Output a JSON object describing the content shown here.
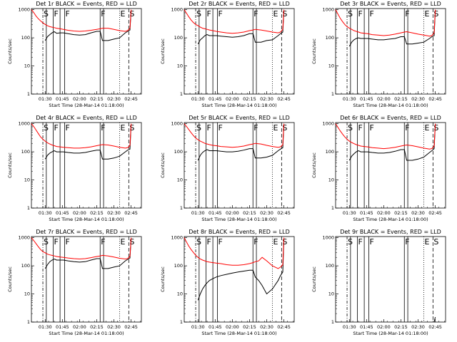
{
  "figure": {
    "axis_common": {
      "xtick_labels": [
        "01:30",
        "01:45",
        "02:00",
        "02:15",
        "02:30",
        "02:45"
      ],
      "xtick_minutes": [
        90,
        105,
        120,
        135,
        150,
        165
      ],
      "xlim_minutes": [
        78,
        174
      ],
      "ylabel": "Counts/sec",
      "xlabel": "Start Time (28-Mar-14 01:18:00)",
      "ytick_values": [
        1,
        10,
        100,
        1000
      ],
      "ytick_labels": [
        "1",
        "10",
        "100",
        "1000"
      ],
      "ylim": [
        1,
        1100
      ],
      "yscale": "log",
      "colors": {
        "events": "#000000",
        "lld": "#ff0000"
      }
    },
    "markers": [
      {
        "label": "S",
        "time": 88,
        "style": "dash-dot"
      },
      {
        "label": "",
        "time": 91,
        "style": "solid"
      },
      {
        "label": "F",
        "time": 97,
        "style": "solid"
      },
      {
        "label": "",
        "time": 103,
        "style": "solid"
      },
      {
        "label": "F",
        "time": 107,
        "style": "solid"
      },
      {
        "label": "F",
        "time": 138,
        "style": "solid"
      },
      {
        "label": "",
        "time": 141,
        "style": "solid"
      },
      {
        "label": "E",
        "time": 155,
        "style": "dotted"
      },
      {
        "label": "S",
        "time": 163,
        "style": "dashed"
      }
    ]
  },
  "chart_data": [
    {
      "type": "line",
      "title": "Det 1r BLACK = Events, RED = LLD",
      "x": [
        78,
        80,
        82,
        84,
        86,
        88,
        90,
        92,
        94,
        96,
        98,
        100,
        103,
        106,
        110,
        115,
        120,
        125,
        130,
        135,
        138,
        140,
        145,
        150,
        155,
        160,
        162,
        164,
        165
      ],
      "series": [
        {
          "name": "Events",
          "values": [
            null,
            null,
            null,
            null,
            null,
            null,
            80,
            110,
            130,
            150,
            165,
            145,
            150,
            150,
            140,
            130,
            125,
            130,
            150,
            170,
            170,
            80,
            80,
            90,
            100,
            150,
            170,
            190,
            900
          ]
        },
        {
          "name": "LLD",
          "values": [
            1000,
            800,
            600,
            480,
            400,
            340,
            300,
            270,
            250,
            240,
            230,
            220,
            210,
            200,
            185,
            175,
            170,
            175,
            185,
            200,
            210,
            220,
            220,
            200,
            180,
            170,
            180,
            220,
            1000
          ]
        }
      ]
    },
    {
      "type": "line",
      "title": "Det 2r BLACK = Events, RED = LLD",
      "x": [
        78,
        80,
        82,
        84,
        86,
        88,
        90,
        92,
        94,
        96,
        98,
        100,
        103,
        106,
        110,
        115,
        120,
        125,
        130,
        135,
        138,
        140,
        145,
        150,
        155,
        160,
        162,
        164,
        165
      ],
      "series": [
        {
          "name": "Events",
          "values": [
            null,
            null,
            null,
            null,
            null,
            null,
            60,
            85,
            100,
            120,
            130,
            120,
            120,
            120,
            115,
            110,
            105,
            110,
            120,
            140,
            140,
            70,
            70,
            80,
            85,
            120,
            140,
            160,
            900
          ]
        },
        {
          "name": "LLD",
          "values": [
            1000,
            750,
            560,
            430,
            350,
            300,
            270,
            240,
            220,
            210,
            200,
            190,
            180,
            170,
            160,
            150,
            145,
            150,
            160,
            180,
            190,
            200,
            190,
            175,
            160,
            150,
            160,
            200,
            1000
          ]
        }
      ]
    },
    {
      "type": "line",
      "title": "Det 3r BLACK = Events, RED = LLD",
      "x": [
        78,
        80,
        82,
        84,
        86,
        88,
        90,
        92,
        94,
        96,
        98,
        100,
        103,
        106,
        110,
        115,
        120,
        125,
        130,
        135,
        138,
        140,
        145,
        150,
        155,
        160,
        162,
        164,
        165
      ],
      "series": [
        {
          "name": "Events",
          "values": [
            null,
            null,
            null,
            null,
            null,
            null,
            50,
            70,
            85,
            95,
            100,
            95,
            95,
            95,
            90,
            85,
            85,
            90,
            95,
            110,
            110,
            60,
            60,
            65,
            70,
            95,
            110,
            120,
            900
          ]
        },
        {
          "name": "LLD",
          "values": [
            1000,
            700,
            500,
            380,
            300,
            250,
            220,
            200,
            180,
            170,
            160,
            150,
            145,
            140,
            130,
            125,
            120,
            125,
            135,
            150,
            160,
            165,
            150,
            135,
            125,
            115,
            120,
            150,
            1000
          ]
        }
      ]
    },
    {
      "type": "line",
      "title": "Det 4r BLACK = Events, RED = LLD",
      "x": [
        78,
        80,
        82,
        84,
        86,
        88,
        90,
        92,
        94,
        96,
        98,
        100,
        103,
        106,
        110,
        115,
        120,
        125,
        130,
        135,
        138,
        140,
        145,
        150,
        155,
        160,
        162,
        164,
        165
      ],
      "series": [
        {
          "name": "Events",
          "values": [
            null,
            null,
            null,
            null,
            null,
            null,
            55,
            75,
            90,
            100,
            110,
            100,
            100,
            100,
            95,
            90,
            90,
            95,
            105,
            115,
            115,
            55,
            55,
            60,
            70,
            100,
            115,
            125,
            900
          ]
        },
        {
          "name": "LLD",
          "values": [
            1000,
            800,
            600,
            450,
            340,
            280,
            240,
            210,
            190,
            175,
            165,
            155,
            150,
            145,
            140,
            135,
            135,
            140,
            150,
            165,
            175,
            180,
            175,
            160,
            145,
            135,
            140,
            170,
            1000
          ]
        }
      ]
    },
    {
      "type": "line",
      "title": "Det 5r BLACK = Events, RED = LLD",
      "x": [
        78,
        80,
        82,
        84,
        86,
        88,
        90,
        92,
        94,
        96,
        98,
        100,
        103,
        106,
        110,
        115,
        120,
        125,
        130,
        135,
        138,
        140,
        145,
        150,
        155,
        160,
        162,
        164,
        165
      ],
      "series": [
        {
          "name": "Events",
          "values": [
            null,
            null,
            null,
            null,
            null,
            null,
            50,
            75,
            95,
            110,
            120,
            110,
            110,
            110,
            105,
            100,
            100,
            105,
            115,
            130,
            130,
            60,
            60,
            65,
            75,
            110,
            125,
            140,
            900
          ]
        },
        {
          "name": "LLD",
          "values": [
            1000,
            800,
            620,
            480,
            380,
            310,
            270,
            240,
            220,
            200,
            190,
            180,
            170,
            165,
            155,
            150,
            145,
            150,
            160,
            180,
            190,
            200,
            190,
            170,
            155,
            145,
            150,
            180,
            1000
          ]
        }
      ]
    },
    {
      "type": "line",
      "title": "Det 6r BLACK = Events, RED = LLD",
      "x": [
        78,
        80,
        82,
        84,
        86,
        88,
        90,
        92,
        94,
        96,
        98,
        100,
        103,
        106,
        110,
        115,
        120,
        125,
        130,
        135,
        138,
        140,
        145,
        150,
        155,
        160,
        162,
        164,
        165
      ],
      "series": [
        {
          "name": "Events",
          "values": [
            null,
            null,
            null,
            null,
            null,
            null,
            50,
            70,
            85,
            100,
            110,
            100,
            100,
            100,
            95,
            90,
            90,
            95,
            105,
            120,
            120,
            50,
            50,
            55,
            65,
            95,
            110,
            130,
            900
          ]
        },
        {
          "name": "LLD",
          "values": [
            1000,
            750,
            560,
            430,
            340,
            280,
            240,
            215,
            195,
            180,
            170,
            160,
            155,
            150,
            140,
            135,
            130,
            135,
            145,
            160,
            170,
            175,
            165,
            150,
            135,
            125,
            130,
            160,
            1000
          ]
        }
      ]
    },
    {
      "type": "line",
      "title": "Det 7r BLACK = Events, RED = LLD",
      "x": [
        78,
        80,
        82,
        84,
        86,
        88,
        90,
        92,
        94,
        96,
        98,
        100,
        103,
        106,
        110,
        115,
        120,
        125,
        130,
        135,
        138,
        140,
        145,
        150,
        155,
        160,
        162,
        164,
        165
      ],
      "series": [
        {
          "name": "Events",
          "values": [
            null,
            null,
            null,
            null,
            null,
            null,
            80,
            110,
            140,
            160,
            175,
            160,
            160,
            160,
            150,
            140,
            135,
            140,
            160,
            180,
            180,
            80,
            80,
            90,
            100,
            150,
            170,
            190,
            900
          ]
        },
        {
          "name": "LLD",
          "values": [
            1000,
            800,
            620,
            480,
            380,
            320,
            290,
            260,
            245,
            235,
            225,
            215,
            205,
            200,
            190,
            180,
            175,
            180,
            195,
            215,
            225,
            235,
            225,
            205,
            185,
            175,
            180,
            220,
            1000
          ]
        }
      ]
    },
    {
      "type": "line",
      "title": "Det 8r BLACK = Events, RED = LLD",
      "x": [
        78,
        80,
        82,
        84,
        86,
        88,
        90,
        92,
        94,
        96,
        98,
        100,
        103,
        106,
        110,
        115,
        120,
        125,
        130,
        135,
        138,
        140,
        143,
        146,
        150,
        155,
        160,
        162,
        164,
        165
      ],
      "series": [
        {
          "name": "Events",
          "values": [
            null,
            null,
            null,
            null,
            null,
            null,
            6,
            10,
            15,
            20,
            25,
            30,
            35,
            40,
            45,
            50,
            55,
            60,
            65,
            70,
            70,
            40,
            30,
            20,
            10,
            15,
            30,
            45,
            60,
            900
          ]
        },
        {
          "name": "LLD",
          "values": [
            1000,
            700,
            500,
            380,
            300,
            240,
            200,
            175,
            160,
            150,
            140,
            135,
            130,
            125,
            120,
            110,
            105,
            105,
            110,
            120,
            130,
            140,
            150,
            200,
            150,
            100,
            80,
            90,
            110,
            1000
          ]
        }
      ]
    },
    {
      "type": "line",
      "title": "Det 9r BLACK = Events, RED = LLD",
      "x": [
        160,
        162,
        164,
        165
      ],
      "series": [
        {
          "name": "Events",
          "values": [
            null,
            null,
            1,
            1.5
          ]
        },
        {
          "name": "LLD",
          "values": [
            null,
            null,
            null,
            null
          ]
        }
      ]
    }
  ]
}
